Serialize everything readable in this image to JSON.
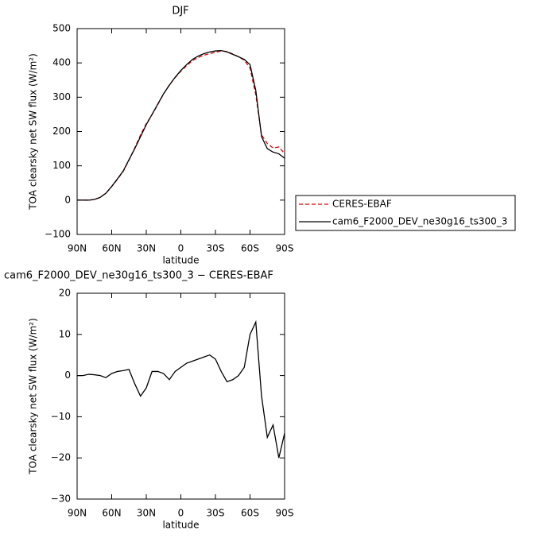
{
  "chart_data": [
    {
      "type": "line",
      "title": "DJF",
      "xlabel": "latitude",
      "ylabel": "TOA clearsky net SW flux (W/m²)",
      "x": [
        90,
        85,
        80,
        75,
        70,
        65,
        60,
        55,
        50,
        45,
        40,
        35,
        30,
        25,
        20,
        15,
        10,
        5,
        0,
        -5,
        -10,
        -15,
        -20,
        -25,
        -30,
        -35,
        -40,
        -45,
        -50,
        -55,
        -60,
        -65,
        -70,
        -75,
        -80,
        -85,
        -90
      ],
      "series": [
        {
          "name": "CERES-EBAF",
          "color": "#e00000",
          "dash": "dashed",
          "values": [
            0,
            0,
            -0.3,
            1.8,
            8,
            20.5,
            39.5,
            61,
            83.8,
            116.5,
            152,
            190,
            223,
            249,
            279,
            309.5,
            336,
            357,
            376,
            392,
            406.5,
            416,
            422.5,
            427,
            431,
            435,
            433.5,
            426,
            418,
            408,
            385,
            307,
            190,
            165,
            152,
            155,
            136
          ]
        },
        {
          "name": "cam6_F2000_DEV_ne30g16_ts300_3",
          "color": "#000000",
          "dash": "solid",
          "values": [
            0,
            0,
            0,
            2,
            8,
            20,
            40,
            62,
            85,
            118,
            150,
            185,
            220,
            250,
            280,
            310,
            335,
            358,
            378,
            395,
            410,
            420,
            427,
            432,
            435,
            436,
            432,
            425,
            418,
            410,
            395,
            320,
            185,
            150,
            140,
            135,
            122
          ]
        }
      ],
      "xlim": [
        90,
        -90
      ],
      "xticks": [
        {
          "value": 90,
          "label": "90N"
        },
        {
          "value": 60,
          "label": "60N"
        },
        {
          "value": 30,
          "label": "30N"
        },
        0,
        {
          "value": -30,
          "label": "30S"
        },
        {
          "value": -60,
          "label": "60S"
        },
        {
          "value": -90,
          "label": "90S"
        }
      ],
      "ylim": [
        -100,
        500
      ],
      "yticks": [
        {
          "value": -100,
          "label": "−100"
        },
        0,
        100,
        200,
        300,
        400,
        500
      ],
      "legend": "right"
    },
    {
      "type": "line",
      "title": "cam6_F2000_DEV_ne30g16_ts300_3 − CERES-EBAF",
      "xlabel": "latitude",
      "ylabel": "TOA clearsky net SW flux (W/m²)",
      "x": [
        90,
        85,
        80,
        75,
        70,
        65,
        60,
        55,
        50,
        45,
        40,
        35,
        30,
        25,
        20,
        15,
        10,
        5,
        0,
        -5,
        -10,
        -15,
        -20,
        -25,
        -30,
        -35,
        -40,
        -45,
        -50,
        -55,
        -60,
        -65,
        -70,
        -75,
        -80,
        -85,
        -90
      ],
      "series": [
        {
          "color": "#000000",
          "dash": "solid",
          "values": [
            0,
            0,
            0.3,
            0.2,
            0,
            -0.5,
            0.5,
            1,
            1.2,
            1.5,
            -2,
            -5,
            -3,
            1,
            1,
            0.5,
            -1,
            1,
            2,
            3,
            3.5,
            4,
            4.5,
            5,
            4,
            1,
            -1.5,
            -1,
            0,
            2,
            10,
            13,
            -5,
            -15,
            -12,
            -20,
            -14
          ]
        }
      ],
      "xlim": [
        90,
        -90
      ],
      "xticks": [
        {
          "value": 90,
          "label": "90N"
        },
        {
          "value": 60,
          "label": "60N"
        },
        {
          "value": 30,
          "label": "30N"
        },
        0,
        {
          "value": -30,
          "label": "30S"
        },
        {
          "value": -60,
          "label": "60S"
        },
        {
          "value": -90,
          "label": "90S"
        }
      ],
      "ylim": [
        -30,
        20
      ],
      "yticks": [
        {
          "value": -30,
          "label": "−30"
        },
        {
          "value": -20,
          "label": "−20"
        },
        {
          "value": -10,
          "label": "−10"
        },
        0,
        10,
        20
      ]
    }
  ]
}
